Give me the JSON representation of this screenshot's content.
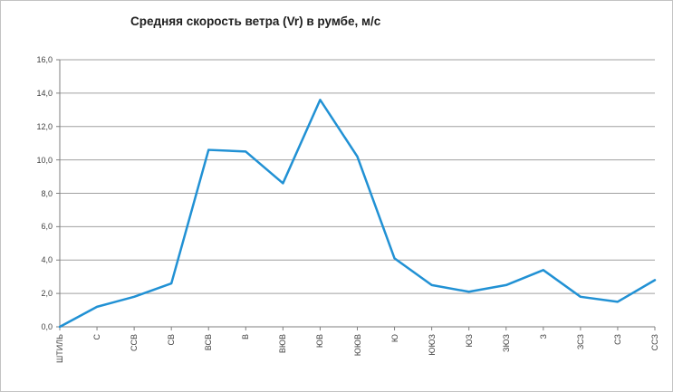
{
  "window": {
    "background": "#ffffff",
    "border_color": "#c3c3c3"
  },
  "chart_data": {
    "type": "line",
    "title": "Средняя скорость ветра (Vr) в румбе, м/с",
    "xlabel": "",
    "ylabel": "",
    "categories": [
      "ШТИЛЬ",
      "С",
      "ССВ",
      "СВ",
      "ВСВ",
      "В",
      "ВЮВ",
      "ЮВ",
      "ЮЮВ",
      "Ю",
      "ЮЮЗ",
      "ЮЗ",
      "ЗЮЗ",
      "З",
      "ЗСЗ",
      "СЗ",
      "ССЗ"
    ],
    "values": [
      0.0,
      1.2,
      1.8,
      2.6,
      10.6,
      10.5,
      8.6,
      13.6,
      10.2,
      4.1,
      2.5,
      2.1,
      2.5,
      3.4,
      1.8,
      1.5,
      2.8
    ],
    "ylim": [
      0,
      16
    ],
    "ytick_step": 2,
    "y_tick_labels": [
      "0,0",
      "2,0",
      "4,0",
      "6,0",
      "8,0",
      "10,0",
      "12,0",
      "14,0",
      "16,0"
    ],
    "grid": true,
    "legend": "none",
    "x_labels_rotated_degrees": 90,
    "colors": {
      "line": "#2191d4",
      "gridline": "#a0a0a0",
      "axis": "#7f7f7f",
      "tick_text": "#3f3f3f",
      "title_text": "#1f1f1f"
    }
  }
}
